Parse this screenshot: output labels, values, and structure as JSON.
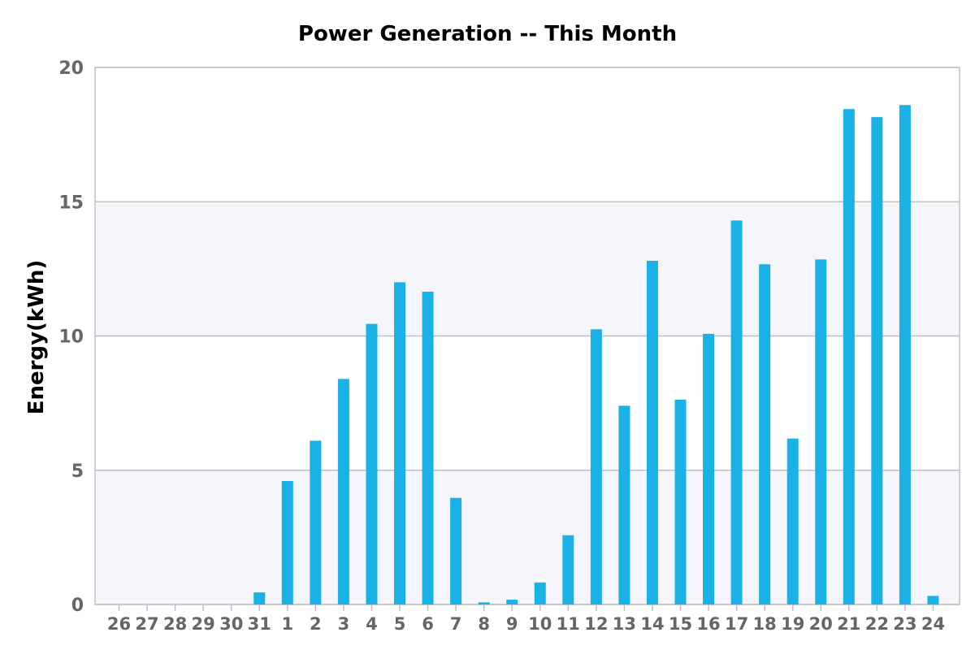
{
  "chart_data": {
    "type": "bar",
    "title": "Power Generation -- This Month",
    "xlabel": "",
    "ylabel": "Energy(kWh)",
    "ylim": [
      0,
      20
    ],
    "yticks": [
      "0",
      "5",
      "10",
      "15",
      "20"
    ],
    "grid": true,
    "legend": "none",
    "categories": [
      "26",
      "27",
      "28",
      "29",
      "30",
      "31",
      "1",
      "2",
      "3",
      "4",
      "5",
      "6",
      "7",
      "8",
      "9",
      "10",
      "11",
      "12",
      "13",
      "14",
      "15",
      "16",
      "17",
      "18",
      "19",
      "20",
      "21",
      "22",
      "23",
      "24"
    ],
    "values": [
      0,
      0,
      0,
      0,
      0,
      0.45,
      4.6,
      6.1,
      8.4,
      10.45,
      12.0,
      11.65,
      3.97,
      0.08,
      0.18,
      0.82,
      2.58,
      10.25,
      7.4,
      12.8,
      7.63,
      10.08,
      14.3,
      12.67,
      6.18,
      12.85,
      18.45,
      18.15,
      18.6,
      0.32
    ],
    "colors": {
      "bar": "#1ab2e6",
      "plot_band_light": "#f4f6fb",
      "plot_band_white": "#ffffff",
      "grid": "#c0c0c0",
      "axis_frame": "#c0c0c0",
      "tick_text": "#666666",
      "title_text": "#000000"
    }
  }
}
